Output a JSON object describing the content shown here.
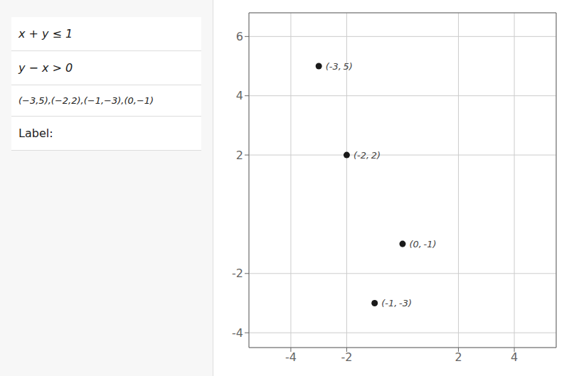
{
  "chart_data": {
    "type": "scatter",
    "x": [
      -3,
      -2,
      -1,
      0
    ],
    "values": [
      5,
      2,
      -3,
      -1
    ],
    "value_labels": [
      "(-3, 5)",
      "(-2, 2)",
      "(-1, -3)",
      "(0, -1)"
    ],
    "color": "#1a1a1a",
    "marker": "circle",
    "xlim": [
      -5.5,
      5.5
    ],
    "ylim": [
      -4.5,
      6.8
    ],
    "xticks": [
      -4,
      -2,
      2,
      4
    ],
    "yticks": [
      -4,
      -2,
      2,
      4,
      6
    ],
    "grid": true,
    "data_labels": true,
    "annotations": [
      "x + y ≤ 1",
      "y − x > 0",
      "(−3,5),(−2,2),(−1,−3),(0,−1)",
      "Label:"
    ]
  }
}
